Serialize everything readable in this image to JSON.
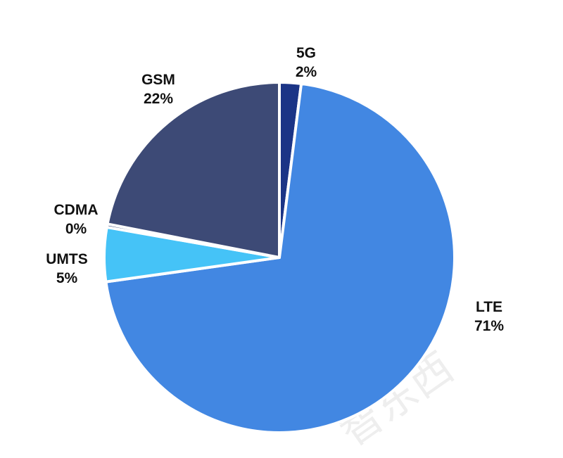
{
  "chart_data": {
    "type": "pie",
    "title": "",
    "categories": [
      "5G",
      "LTE",
      "UMTS",
      "CDMA",
      "GSM"
    ],
    "values": [
      2,
      71,
      5,
      0,
      22
    ],
    "labels": [
      "2%",
      "71%",
      "5%",
      "0%",
      "22%"
    ],
    "colors": [
      "#1b3486",
      "#4287e2",
      "#45c3f7",
      "#3a4a7a",
      "#3d4a76"
    ],
    "start_angle_deg": 0,
    "direction": "clockwise",
    "legend": "none (data labels outside slices)"
  },
  "labels": {
    "g5": {
      "name": "5G",
      "pct": "2%"
    },
    "lte": {
      "name": "LTE",
      "pct": "71%"
    },
    "umts": {
      "name": "UMTS",
      "pct": "5%"
    },
    "cdma": {
      "name": "CDMA",
      "pct": "0%"
    },
    "gsm": {
      "name": "GSM",
      "pct": "22%"
    }
  },
  "watermark": {
    "text": "智东西"
  }
}
